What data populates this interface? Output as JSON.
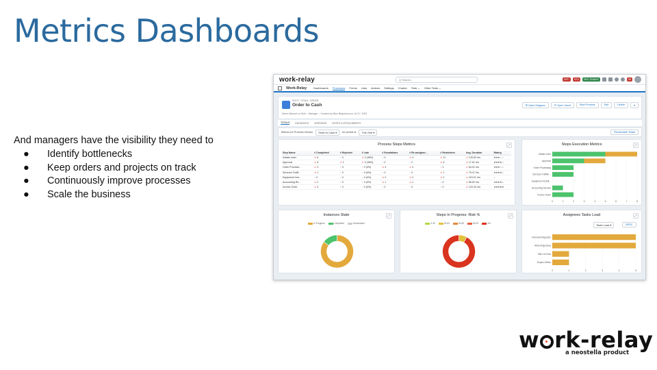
{
  "slide": {
    "title": "Metrics Dashboards",
    "intro": "And managers have the visibility they need to",
    "bullet_symbol": "●",
    "bullets": [
      "Identify bottlenecks",
      "Keep orders and projects on track",
      "Continuously improve processes",
      "Scale the business"
    ]
  },
  "brand": {
    "name_part1": "w",
    "name_part2": "rk-relay",
    "tagline": "a neostella product",
    "accent": "#ff4d2e"
  },
  "app": {
    "logo": "work-relay",
    "search_placeholder": "Q Search...",
    "badges": [
      "SFF:",
      "STG",
      "DEV-TENANT"
    ],
    "notification_count": "99",
    "app_name": "Work-Relay",
    "nav": [
      "Dashboards",
      "Processes",
      "Forms",
      "Lists",
      "Actions",
      "Settings",
      "Charter",
      "Stub ⌄",
      "Other Tests ⌄"
    ],
    "nav_active_index": 1,
    "record": {
      "breadcrumb": "ROOT › FRAN › ORDER",
      "name": "Order to Cash",
      "subtitle": "Demo Manual on Stub – Manager – Created by Alice Brigustova on Jul 17, 2023"
    },
    "actions": [
      "☰ Open Diagram",
      "☷ Open Gantt",
      "Start Process",
      "Edit",
      "Delete"
    ],
    "tabs": [
      "TOTALS",
      "INSTANCES",
      "VERSIONS",
      "NOTES & ATTACHMENTS"
    ],
    "filter": {
      "label": "Metrics for Process Version",
      "version": "Order to Cash",
      "period_label": "for period of",
      "period": "This Year",
      "recalc": "Recalculate Totals"
    },
    "steps_table": {
      "title": "Process Steps Metrics",
      "headers": [
        "Step Name",
        "# Completed",
        "# Rejected",
        "# Late",
        "# Escalations",
        "# Re-assignm...",
        "# Reminders",
        "Avg. Duration",
        "Rating"
      ],
      "rows": [
        [
          "Initiate order",
          "⊘ 6",
          "◌ 0",
          "⊘ 3 (38%)",
          "◌ 0",
          "⊘ 4",
          "⊘ 11",
          "⊘ 126.83 hrs",
          "★★★☆☆"
        ],
        [
          "Approval",
          "⊘ 6",
          "⊘ 1",
          "⊘ 3 (38%)",
          "◌ 0",
          "◌ 0",
          "⊘ 6",
          "⊘ 17.61 hrs",
          "★★★★☆"
        ],
        [
          "Order Processi...",
          "⊘ 3",
          "◌ 0",
          "◌ 0 (0%)",
          "⊘ 4",
          "⊘ 4",
          "◌ 0",
          "⊘ 84.01 hrs",
          "★★★☆☆"
        ],
        [
          "Services Fulfill...",
          "⊘ 1",
          "◌ 0",
          "◌ 0 (0%)",
          "◌ 0",
          "◌ 0",
          "⊘ 1",
          "⊘ 75.47 hrs",
          "★★★★☆"
        ],
        [
          "Equipment Inst...",
          "◌ 0",
          "◌ 0",
          "◌ 0 (0%)",
          "⊘ 2",
          "⊘ 2",
          "⊘ 2",
          "⊘ 224.01 hrs",
          "–"
        ],
        [
          "Accounting Re...",
          "⊘ 2",
          "◌ 0",
          "◌ 0 (0%)",
          "⊘ 1",
          "⊘ 1",
          "◌ 0",
          "⊘ 88.82 hrs",
          "★★★★☆"
        ],
        [
          "Invoice Order",
          "⊘ 3",
          "◌ 0",
          "◌ 0 (0%)",
          "◌ 0",
          "◌ 0",
          "◌ 0",
          "⊘ 120.33 hrs",
          "★★★★★"
        ]
      ]
    },
    "ui_colors": {
      "brand_blue": "#1b73c4",
      "green": "#2e844a",
      "error": "#e85a4f"
    }
  },
  "chart_data": [
    {
      "type": "bar",
      "orientation": "horizontal",
      "stacked": true,
      "title": "Steps Execution Metrics",
      "categories": [
        "Initiate order",
        "Approval",
        "Order Processing",
        "Services Fulfillm...",
        "Equipment Install...",
        "Accounting Review",
        "Invoice Order"
      ],
      "series": [
        {
          "color": "#4cc36c",
          "values": [
            5,
            3,
            2,
            2,
            0,
            1,
            2
          ]
        },
        {
          "color": "#e3a93c",
          "values": [
            3,
            2,
            0,
            0,
            0,
            0,
            0
          ]
        }
      ],
      "xlim": [
        0,
        8
      ],
      "xticks": [
        0,
        1,
        2,
        3,
        4,
        5,
        6,
        7,
        8
      ]
    },
    {
      "type": "pie",
      "donut": true,
      "title": "Instances State",
      "labels": [
        "In Progress",
        "Completed",
        "Deactivated"
      ],
      "values": [
        85,
        15,
        0
      ],
      "colors": [
        "#e3a93c",
        "#4cc36c",
        "#cccccc"
      ]
    },
    {
      "type": "pie",
      "donut": true,
      "title": "Steps In Progress: Risk %",
      "labels": [
        "0-30",
        "30-60",
        "60-80",
        "80-90",
        "90+"
      ],
      "values": [
        0,
        8,
        0,
        0,
        92
      ],
      "colors": [
        "#b5d84a",
        "#e3c13c",
        "#e38a3c",
        "#e3603c",
        "#d9341f"
      ]
    },
    {
      "type": "bar",
      "orientation": "horizontal",
      "title": "Assignees Tasks Load",
      "controls": [
        "Tasks Load",
        "DESC"
      ],
      "categories": [
        "Vsevolod Brigustov",
        "Alina Brigustova",
        "Will Lim Now",
        "Dmytro Minko"
      ],
      "values": [
        5,
        5,
        1,
        1
      ],
      "color": "#e3a93c",
      "xlim": [
        0,
        5
      ],
      "xticks": [
        0,
        1,
        2,
        3,
        4,
        5
      ]
    }
  ]
}
